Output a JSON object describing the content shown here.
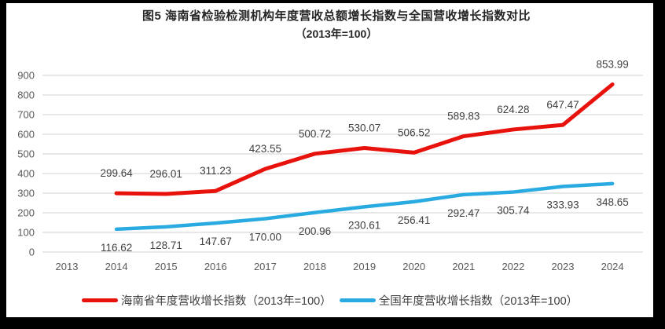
{
  "chart_data": {
    "type": "line",
    "title_lines": [
      "图5  海南省检验检测机构年度营收总额增长指数与全国营收增长指数对比",
      "（2013年=100）"
    ],
    "categories": [
      "2013",
      "2014",
      "2015",
      "2016",
      "2017",
      "2018",
      "2019",
      "2020",
      "2021",
      "2022",
      "2023",
      "2024"
    ],
    "series": [
      {
        "name": "海南省年度营收增长指数（2013年=100）",
        "color": "#e8120d",
        "start_index": 1,
        "values": [
          299.64,
          296.01,
          311.23,
          423.55,
          500.72,
          530.07,
          506.52,
          589.83,
          624.28,
          647.47,
          853.99
        ]
      },
      {
        "name": "全国年度营收增长指数（2013年=100）",
        "color": "#29abe2",
        "start_index": 1,
        "values": [
          116.62,
          128.71,
          147.67,
          170.0,
          200.96,
          230.61,
          256.41,
          292.47,
          305.74,
          333.93,
          348.65
        ]
      }
    ],
    "xlabel": "",
    "ylabel": "",
    "ylim": [
      0,
      900
    ],
    "ytick_step": 100,
    "grid": true,
    "legend_position": "bottom",
    "value_decimals": 2
  },
  "colors": {
    "frame": "#000000",
    "plot_background": "#ffffff",
    "gridline": "#d9d9d9",
    "axis_label": "#595959",
    "data_label": "#404040",
    "title": "#262626",
    "legend_text": "#404040"
  }
}
